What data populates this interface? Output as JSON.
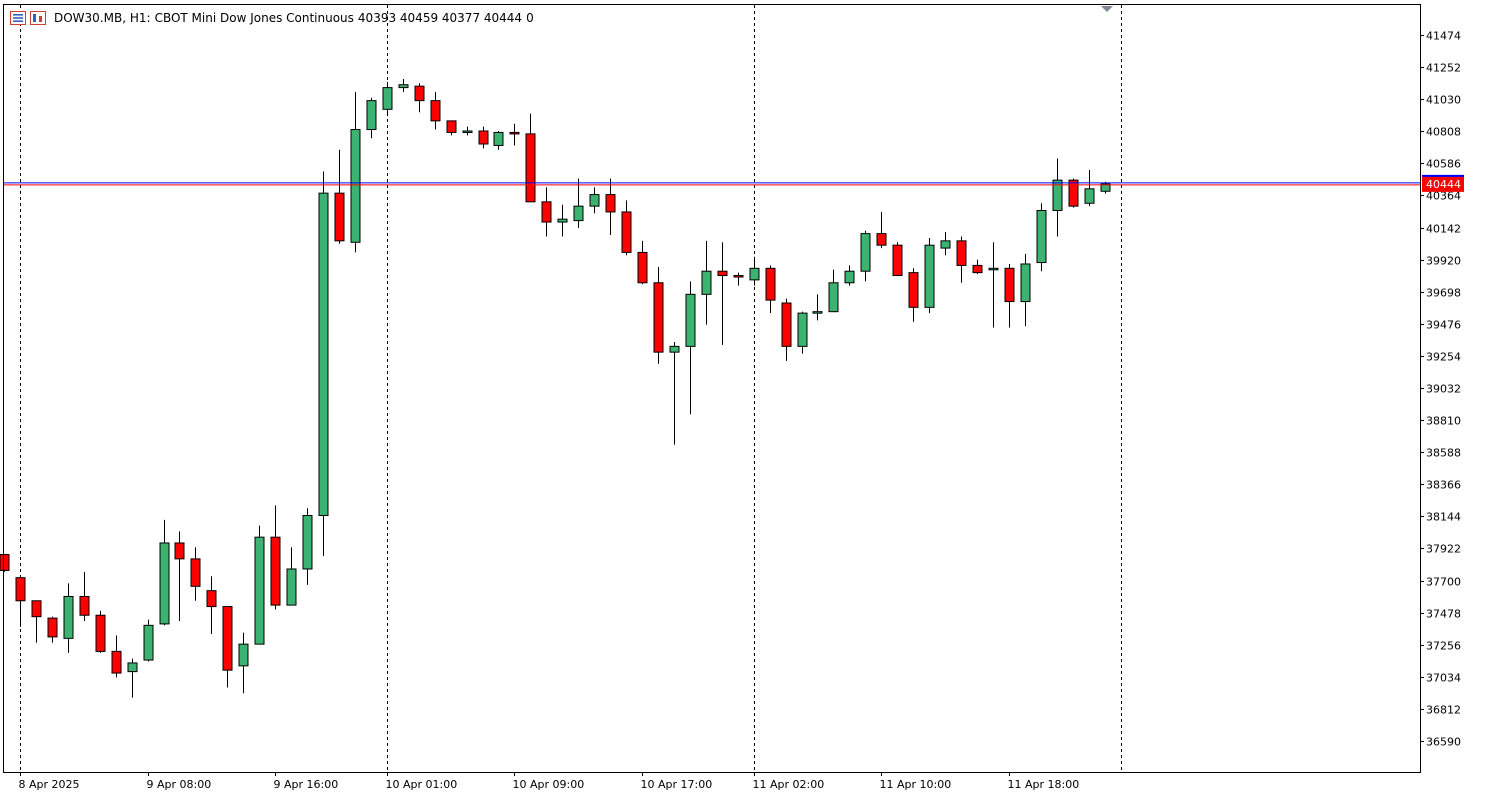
{
  "header": {
    "symbol": "DOW30.MB, H1:",
    "description": "CBOT Mini Dow Jones Continuous",
    "ohlc": "40393 40459 40377 40444",
    "volume": "0",
    "icons": [
      "chart-properties-icon",
      "indicator-list-icon"
    ]
  },
  "colors": {
    "bull": "#3cb371",
    "bear": "#ff0000",
    "wick": "#000000",
    "background": "#ffffff",
    "grid": "#000000",
    "price_line_blue": "#0000ff",
    "price_line_red": "#ff0000",
    "price_tag_bg": "#ff0000",
    "price_tag_text": "#ffffff"
  },
  "chart_data": {
    "type": "candlestick",
    "symbol": "DOW30.MB",
    "timeframe": "H1",
    "yticks": [
      41474,
      41252,
      41030,
      40808,
      40586,
      40364,
      40142,
      39920,
      39698,
      39476,
      39254,
      39032,
      38810,
      38588,
      38366,
      38144,
      37922,
      37700,
      37478,
      37256,
      37034,
      36812,
      36590
    ],
    "ylim": [
      36350,
      41680
    ],
    "xlabels": [
      {
        "index": 1,
        "label": "8 Apr 2025"
      },
      {
        "index": 9,
        "label": "9 Apr 08:00"
      },
      {
        "index": 17,
        "label": "9 Apr 16:00"
      },
      {
        "index": 24,
        "label": "10 Apr 01:00"
      },
      {
        "index": 32,
        "label": "10 Apr 09:00"
      },
      {
        "index": 40,
        "label": "10 Apr 17:00"
      },
      {
        "index": 47,
        "label": "11 Apr 02:00"
      },
      {
        "index": 55,
        "label": "11 Apr 10:00"
      },
      {
        "index": 63,
        "label": "11 Apr 18:00"
      }
    ],
    "day_separators": [
      1,
      24,
      47,
      70
    ],
    "current_price": 40444,
    "current_price_label": "40444",
    "candles": [
      {
        "o": 37880,
        "h": 37880,
        "l": 37760,
        "c": 37770
      },
      {
        "o": 37720,
        "h": 37720,
        "l": 37380,
        "c": 37560
      },
      {
        "o": 37560,
        "h": 37560,
        "l": 37270,
        "c": 37450
      },
      {
        "o": 37440,
        "h": 37450,
        "l": 37270,
        "c": 37310
      },
      {
        "o": 37300,
        "h": 37680,
        "l": 37200,
        "c": 37590
      },
      {
        "o": 37590,
        "h": 37760,
        "l": 37420,
        "c": 37460
      },
      {
        "o": 37460,
        "h": 37490,
        "l": 37200,
        "c": 37210
      },
      {
        "o": 37210,
        "h": 37320,
        "l": 37030,
        "c": 37060
      },
      {
        "o": 37070,
        "h": 37160,
        "l": 36890,
        "c": 37130
      },
      {
        "o": 37150,
        "h": 37430,
        "l": 37140,
        "c": 37390
      },
      {
        "o": 37400,
        "h": 38120,
        "l": 37390,
        "c": 37960
      },
      {
        "o": 37960,
        "h": 38040,
        "l": 37420,
        "c": 37850
      },
      {
        "o": 37850,
        "h": 37930,
        "l": 37560,
        "c": 37660
      },
      {
        "o": 37630,
        "h": 37730,
        "l": 37330,
        "c": 37520
      },
      {
        "o": 37520,
        "h": 37520,
        "l": 36960,
        "c": 37080
      },
      {
        "o": 37110,
        "h": 37340,
        "l": 36920,
        "c": 37260
      },
      {
        "o": 37260,
        "h": 38080,
        "l": 37260,
        "c": 38000
      },
      {
        "o": 38000,
        "h": 38220,
        "l": 37500,
        "c": 37530
      },
      {
        "o": 37530,
        "h": 37930,
        "l": 37530,
        "c": 37780
      },
      {
        "o": 37780,
        "h": 38200,
        "l": 37670,
        "c": 38150
      },
      {
        "o": 38150,
        "h": 40530,
        "l": 37870,
        "c": 40380
      },
      {
        "o": 40380,
        "h": 40680,
        "l": 40030,
        "c": 40050
      },
      {
        "o": 40040,
        "h": 41080,
        "l": 39970,
        "c": 40820
      },
      {
        "o": 40820,
        "h": 41040,
        "l": 40760,
        "c": 41020
      },
      {
        "o": 40960,
        "h": 41150,
        "l": 40920,
        "c": 41110
      },
      {
        "o": 41110,
        "h": 41170,
        "l": 41080,
        "c": 41130
      },
      {
        "o": 41120,
        "h": 41140,
        "l": 40940,
        "c": 41020
      },
      {
        "o": 41020,
        "h": 41080,
        "l": 40820,
        "c": 40880
      },
      {
        "o": 40880,
        "h": 40880,
        "l": 40780,
        "c": 40800
      },
      {
        "o": 40800,
        "h": 40840,
        "l": 40780,
        "c": 40810
      },
      {
        "o": 40810,
        "h": 40840,
        "l": 40690,
        "c": 40720
      },
      {
        "o": 40710,
        "h": 40810,
        "l": 40680,
        "c": 40800
      },
      {
        "o": 40800,
        "h": 40860,
        "l": 40710,
        "c": 40790
      },
      {
        "o": 40790,
        "h": 40930,
        "l": 40320,
        "c": 40320
      },
      {
        "o": 40320,
        "h": 40420,
        "l": 40080,
        "c": 40180
      },
      {
        "o": 40180,
        "h": 40300,
        "l": 40080,
        "c": 40200
      },
      {
        "o": 40190,
        "h": 40480,
        "l": 40140,
        "c": 40290
      },
      {
        "o": 40290,
        "h": 40420,
        "l": 40240,
        "c": 40370
      },
      {
        "o": 40370,
        "h": 40480,
        "l": 40090,
        "c": 40250
      },
      {
        "o": 40250,
        "h": 40330,
        "l": 39950,
        "c": 39970
      },
      {
        "o": 39970,
        "h": 40050,
        "l": 39750,
        "c": 39760
      },
      {
        "o": 39760,
        "h": 39870,
        "l": 39200,
        "c": 39280
      },
      {
        "o": 39280,
        "h": 39350,
        "l": 38640,
        "c": 39320
      },
      {
        "o": 39320,
        "h": 39770,
        "l": 38850,
        "c": 39680
      },
      {
        "o": 39680,
        "h": 40050,
        "l": 39470,
        "c": 39840
      },
      {
        "o": 39840,
        "h": 40040,
        "l": 39330,
        "c": 39810
      },
      {
        "o": 39810,
        "h": 39830,
        "l": 39740,
        "c": 39800
      },
      {
        "o": 39780,
        "h": 39940,
        "l": 39740,
        "c": 39860
      },
      {
        "o": 39860,
        "h": 39880,
        "l": 39550,
        "c": 39640
      },
      {
        "o": 39620,
        "h": 39650,
        "l": 39220,
        "c": 39320
      },
      {
        "o": 39320,
        "h": 39560,
        "l": 39270,
        "c": 39550
      },
      {
        "o": 39550,
        "h": 39680,
        "l": 39500,
        "c": 39560
      },
      {
        "o": 39560,
        "h": 39850,
        "l": 39560,
        "c": 39760
      },
      {
        "o": 39760,
        "h": 39880,
        "l": 39740,
        "c": 39840
      },
      {
        "o": 39840,
        "h": 40120,
        "l": 39770,
        "c": 40100
      },
      {
        "o": 40100,
        "h": 40250,
        "l": 40000,
        "c": 40020
      },
      {
        "o": 40020,
        "h": 40040,
        "l": 39810,
        "c": 39810
      },
      {
        "o": 39830,
        "h": 39860,
        "l": 39490,
        "c": 39590
      },
      {
        "o": 39590,
        "h": 40070,
        "l": 39550,
        "c": 40020
      },
      {
        "o": 40000,
        "h": 40110,
        "l": 39950,
        "c": 40050
      },
      {
        "o": 40050,
        "h": 40080,
        "l": 39760,
        "c": 39880
      },
      {
        "o": 39880,
        "h": 39920,
        "l": 39820,
        "c": 39830
      },
      {
        "o": 39860,
        "h": 40040,
        "l": 39450,
        "c": 39860
      },
      {
        "o": 39860,
        "h": 39890,
        "l": 39450,
        "c": 39630
      },
      {
        "o": 39630,
        "h": 39960,
        "l": 39460,
        "c": 39890
      },
      {
        "o": 39900,
        "h": 40310,
        "l": 39840,
        "c": 40260
      },
      {
        "o": 40260,
        "h": 40620,
        "l": 40080,
        "c": 40470
      },
      {
        "o": 40470,
        "h": 40480,
        "l": 40280,
        "c": 40290
      },
      {
        "o": 40310,
        "h": 40540,
        "l": 40290,
        "c": 40410
      },
      {
        "o": 40393,
        "h": 40459,
        "l": 40377,
        "c": 40444
      }
    ]
  }
}
